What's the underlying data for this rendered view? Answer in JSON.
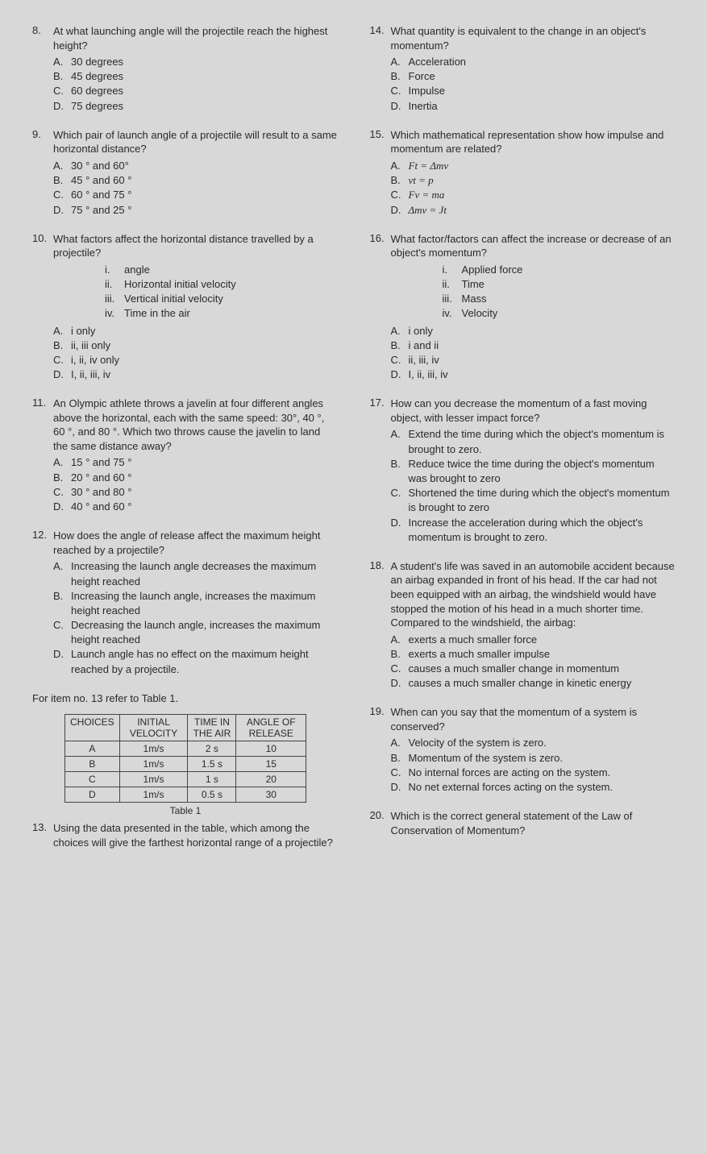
{
  "questions": [
    {
      "num": "8.",
      "text": "At what launching angle will the projectile reach the highest height?",
      "options": [
        {
          "letter": "A.",
          "text": "30 degrees"
        },
        {
          "letter": "B.",
          "text": "45 degrees"
        },
        {
          "letter": "C.",
          "text": "60 degrees"
        },
        {
          "letter": "D.",
          "text": "75 degrees"
        }
      ]
    },
    {
      "num": "9.",
      "text": "Which pair of launch angle of a projectile will result to a same horizontal distance?",
      "options": [
        {
          "letter": "A.",
          "text": "30 ° and 60°"
        },
        {
          "letter": "B.",
          "text": "45 ° and 60 °"
        },
        {
          "letter": "C.",
          "text": "60 ° and 75 °"
        },
        {
          "letter": "D.",
          "text": "75 ° and 25 °"
        }
      ]
    },
    {
      "num": "10.",
      "text": "What factors affect the horizontal distance travelled by a projectile?",
      "roman": [
        {
          "num": "i.",
          "text": "angle"
        },
        {
          "num": "ii.",
          "text": "Horizontal initial velocity"
        },
        {
          "num": "iii.",
          "text": "Vertical initial velocity"
        },
        {
          "num": "iv.",
          "text": "Time in the air"
        }
      ],
      "options": [
        {
          "letter": "A.",
          "text": "i only"
        },
        {
          "letter": "B.",
          "text": "ii, iii only"
        },
        {
          "letter": "C.",
          "text": "i, ii, iv only"
        },
        {
          "letter": "D.",
          "text": "I, ii, iii, iv"
        }
      ]
    },
    {
      "num": "11.",
      "text": "An Olympic athlete throws a javelin at four different angles above the horizontal, each with the same speed: 30°, 40 °, 60 °, and 80 °. Which two throws cause the javelin to land the same distance away?",
      "options": [
        {
          "letter": "A.",
          "text": "15 ° and 75 °"
        },
        {
          "letter": "B.",
          "text": "20 ° and 60 °"
        },
        {
          "letter": "C.",
          "text": "30 ° and 80 °"
        },
        {
          "letter": "D.",
          "text": "40 ° and 60 °"
        }
      ]
    },
    {
      "num": "12.",
      "text": "How does the angle of release affect the maximum height reached by a projectile?",
      "options": [
        {
          "letter": "A.",
          "text": "Increasing the launch angle decreases the maximum height reached"
        },
        {
          "letter": "B.",
          "text": "Increasing the launch angle, increases the maximum height reached"
        },
        {
          "letter": "C.",
          "text": "Decreasing the launch angle, increases the maximum height reached"
        },
        {
          "letter": "D.",
          "text": "Launch angle has no effect on the maximum height reached by a projectile."
        }
      ]
    },
    {
      "num": "13.",
      "text": "Using the data presented in the table, which among the choices will give the farthest horizontal range of a projectile?"
    },
    {
      "num": "14.",
      "text": "What quantity is equivalent to the change in an object's momentum?",
      "options": [
        {
          "letter": "A.",
          "text": "Acceleration"
        },
        {
          "letter": "B.",
          "text": "Force"
        },
        {
          "letter": "C.",
          "text": "Impulse"
        },
        {
          "letter": "D.",
          "text": "Inertia"
        }
      ]
    },
    {
      "num": "15.",
      "text": "Which mathematical representation show how impulse and momentum are related?",
      "options": [
        {
          "letter": "A.",
          "text": "Ft = Δmv"
        },
        {
          "letter": "B.",
          "text": "vt = p"
        },
        {
          "letter": "C.",
          "text": "Fv = ma"
        },
        {
          "letter": "D.",
          "text": "Δmv = Jt"
        }
      ]
    },
    {
      "num": "16.",
      "text": "What factor/factors can affect the increase or decrease of an object's momentum?",
      "roman": [
        {
          "num": "i.",
          "text": "Applied force"
        },
        {
          "num": "ii.",
          "text": "Time"
        },
        {
          "num": "iii.",
          "text": "Mass"
        },
        {
          "num": "iv.",
          "text": "Velocity"
        }
      ],
      "options": [
        {
          "letter": "A.",
          "text": "i only"
        },
        {
          "letter": "B.",
          "text": "i and ii"
        },
        {
          "letter": "C.",
          "text": "ii, iii, iv"
        },
        {
          "letter": "D.",
          "text": "I, ii, iii, iv"
        }
      ]
    },
    {
      "num": "17.",
      "text": "How can you decrease the momentum of a fast moving object, with lesser impact force?",
      "options": [
        {
          "letter": "A.",
          "text": "Extend the time during which the object's momentum is brought to zero."
        },
        {
          "letter": "B.",
          "text": "Reduce twice the time during the object's momentum was brought to zero"
        },
        {
          "letter": "C.",
          "text": "Shortened the time during which the object's momentum is brought to zero"
        },
        {
          "letter": "D.",
          "text": "Increase the acceleration during which the object's momentum is brought to zero."
        }
      ]
    },
    {
      "num": "18.",
      "text": "A student's life was saved in an automobile accident because an airbag expanded in front of his head. If the car had not been equipped with an airbag, the windshield would have stopped the motion of his head in a much shorter time. Compared to the windshield, the airbag:",
      "options": [
        {
          "letter": "A.",
          "text": "exerts a much smaller force"
        },
        {
          "letter": "B.",
          "text": "exerts a much smaller impulse"
        },
        {
          "letter": "C.",
          "text": "causes a much smaller change in momentum"
        },
        {
          "letter": "D.",
          "text": "causes a much smaller change in kinetic energy"
        }
      ]
    },
    {
      "num": "19.",
      "text": "When can you say that the momentum of a system is conserved?",
      "options": [
        {
          "letter": "A.",
          "text": "Velocity of the system is zero."
        },
        {
          "letter": "B.",
          "text": "Momentum of the system is zero."
        },
        {
          "letter": "C.",
          "text": "No internal forces are acting on the system."
        },
        {
          "letter": "D.",
          "text": "No net external forces acting on the system."
        }
      ]
    },
    {
      "num": "20.",
      "text": "Which is the correct general statement of the Law of Conservation of Momentum?"
    }
  ],
  "instruction": "For item no. 13 refer to Table 1.",
  "table": {
    "headers": [
      "CHOICES",
      "INITIAL VELOCITY",
      "TIME IN THE AIR",
      "ANGLE OF RELEASE"
    ],
    "rows": [
      [
        "A",
        "1m/s",
        "2 s",
        "10"
      ],
      [
        "B",
        "1m/s",
        "1.5 s",
        "15"
      ],
      [
        "C",
        "1m/s",
        "1 s",
        "20"
      ],
      [
        "D",
        "1m/s",
        "0.5 s",
        "30"
      ]
    ],
    "caption": "Table 1"
  }
}
